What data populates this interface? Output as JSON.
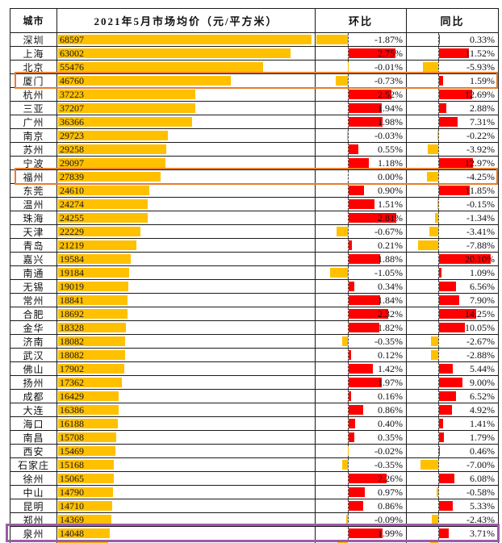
{
  "header": {
    "city": "城市",
    "price": "2021年5月市场均价（元/平方米）",
    "mom": "环比",
    "yoy": "同比"
  },
  "colors": {
    "price_bar": "#FFC000",
    "positive_bar": "#FE0000",
    "negative_bar": "#FFC000",
    "highlight_orange": "#E87D2B",
    "highlight_purple": "#9C5BA5",
    "grid": "#1a1a1a"
  },
  "chart_data": {
    "type": "table",
    "title": "2021年5月市场均价（元/平方米）",
    "columns": [
      "城市",
      "2021年5月市场均价（元/平方米）",
      "环比",
      "同比"
    ],
    "bar_semantics": {
      "price_column": "orange data bar proportional to price, scaled to max 68597",
      "mom_column": "red bar right of dashed zero axis for positive, orange bar left for negative",
      "yoy_column": "red bar right of zero axis for positive, orange bar left for negative"
    },
    "price_max": 68597,
    "mom_range": [
      -1.87,
      2.81
    ],
    "yoy_range": [
      -7.88,
      20.1
    ],
    "rows": [
      {
        "city": "深圳",
        "price": 68597,
        "mom": -1.87,
        "yoy": 0.33
      },
      {
        "city": "上海",
        "price": 63002,
        "mom": 2.75,
        "yoy": 11.52
      },
      {
        "city": "北京",
        "price": 55476,
        "mom": -0.01,
        "yoy": -5.93
      },
      {
        "city": "厦门",
        "price": 46760,
        "mom": -0.73,
        "yoy": 1.59
      },
      {
        "city": "杭州",
        "price": 37223,
        "mom": 2.52,
        "yoy": 12.69
      },
      {
        "city": "三亚",
        "price": 37207,
        "mom": 1.94,
        "yoy": 2.88
      },
      {
        "city": "广州",
        "price": 36366,
        "mom": 1.98,
        "yoy": 7.31
      },
      {
        "city": "南京",
        "price": 29723,
        "mom": -0.03,
        "yoy": -0.22
      },
      {
        "city": "苏州",
        "price": 29258,
        "mom": 0.55,
        "yoy": -3.92
      },
      {
        "city": "宁波",
        "price": 29097,
        "mom": 1.18,
        "yoy": 12.97
      },
      {
        "city": "福州",
        "price": 27839,
        "mom": 0.0,
        "yoy": -4.25
      },
      {
        "city": "东莞",
        "price": 24610,
        "mom": 0.9,
        "yoy": 11.85
      },
      {
        "city": "温州",
        "price": 24274,
        "mom": 1.51,
        "yoy": -0.15
      },
      {
        "city": "珠海",
        "price": 24255,
        "mom": 2.81,
        "yoy": -1.34
      },
      {
        "city": "天津",
        "price": 22229,
        "mom": -0.67,
        "yoy": -3.41
      },
      {
        "city": "青岛",
        "price": 21219,
        "mom": 0.21,
        "yoy": -7.88
      },
      {
        "city": "嘉兴",
        "price": 19584,
        "mom": 1.88,
        "yoy": 20.1
      },
      {
        "city": "南通",
        "price": 19184,
        "mom": -1.05,
        "yoy": 1.09
      },
      {
        "city": "无锡",
        "price": 19019,
        "mom": 0.34,
        "yoy": 6.56
      },
      {
        "city": "常州",
        "price": 18841,
        "mom": 1.84,
        "yoy": 7.9
      },
      {
        "city": "合肥",
        "price": 18692,
        "mom": 2.32,
        "yoy": 14.25
      },
      {
        "city": "金华",
        "price": 18328,
        "mom": 1.82,
        "yoy": 10.05
      },
      {
        "city": "济南",
        "price": 18082,
        "mom": -0.35,
        "yoy": -2.67
      },
      {
        "city": "武汉",
        "price": 18082,
        "mom": 0.12,
        "yoy": -2.88
      },
      {
        "city": "佛山",
        "price": 17902,
        "mom": 1.42,
        "yoy": 5.44
      },
      {
        "city": "扬州",
        "price": 17362,
        "mom": 1.97,
        "yoy": 9.0
      },
      {
        "city": "成都",
        "price": 16429,
        "mom": 0.16,
        "yoy": 6.52
      },
      {
        "city": "大连",
        "price": 16386,
        "mom": 0.86,
        "yoy": 4.92
      },
      {
        "city": "海口",
        "price": 16188,
        "mom": 0.4,
        "yoy": 1.41
      },
      {
        "city": "南昌",
        "price": 15708,
        "mom": 0.35,
        "yoy": 1.79
      },
      {
        "city": "西安",
        "price": 15469,
        "mom": -0.02,
        "yoy": 0.46
      },
      {
        "city": "石家庄",
        "price": 15168,
        "mom": -0.35,
        "yoy": -7.0
      },
      {
        "city": "徐州",
        "price": 15065,
        "mom": 2.26,
        "yoy": 6.08
      },
      {
        "city": "中山",
        "price": 14790,
        "mom": 0.97,
        "yoy": -0.58
      },
      {
        "city": "昆明",
        "price": 14710,
        "mom": 0.86,
        "yoy": 5.33
      },
      {
        "city": "郑州",
        "price": 14369,
        "mom": -0.09,
        "yoy": -2.43
      },
      {
        "city": "泉州",
        "price": 14048,
        "mom": 1.99,
        "yoy": 3.71
      }
    ],
    "highlights": [
      {
        "city": "厦门",
        "row": 3,
        "style": "orange-box"
      },
      {
        "city": "福州",
        "row": 10,
        "style": "orange-box"
      },
      {
        "city": "泉州",
        "row": 36,
        "style": "purple-box"
      }
    ],
    "partial_row_cut_at_bottom": true
  }
}
